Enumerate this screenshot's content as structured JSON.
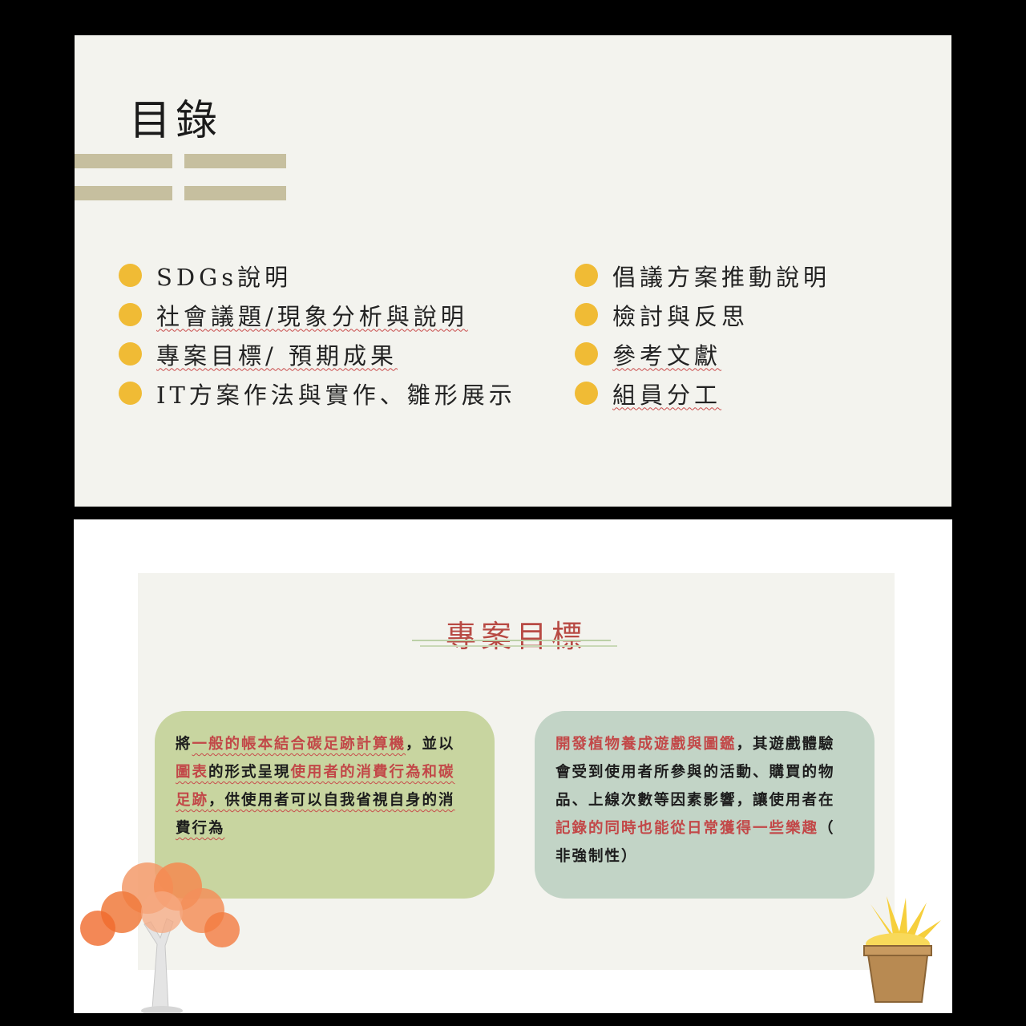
{
  "slide1": {
    "title": "目錄",
    "left_items": [
      "SDGs說明",
      "社會議題/現象分析與說明",
      "專案目標/ 預期成果",
      "IT方案作法與實作、雛形展示"
    ],
    "right_items": [
      "倡議方案推動說明",
      "檢討與反思",
      "參考文獻",
      "組員分工"
    ]
  },
  "slide2": {
    "title": "專案目標",
    "left_card_lines": [
      [
        "將",
        "一般的帳本結合碳足跡計算機",
        "，並以"
      ],
      [
        "圖表",
        "的形式呈現",
        "使用者的消費行為和碳"
      ],
      [
        "足跡",
        "，供使用者可以自我省視自身的消"
      ],
      [
        "費行為"
      ]
    ],
    "right_card_lines": [
      [
        "開發植物養成遊戲與圖鑑",
        "，其遊戲體驗"
      ],
      [
        "會受到使用者所參與的活動、購買的物"
      ],
      [
        "品、上線次數等因素影響，讓使用者在"
      ],
      [
        "記錄的同時也能從日常獲得一些樂趣",
        "（"
      ],
      [
        "非強制性）"
      ]
    ]
  },
  "colors": {
    "bullet": "#f0bb35",
    "bars": "#c6bf9f",
    "highlight_red": "#c24848",
    "title_red": "#b84a44",
    "left_card": "#c8d5a0",
    "right_card": "#c2d4c6"
  }
}
